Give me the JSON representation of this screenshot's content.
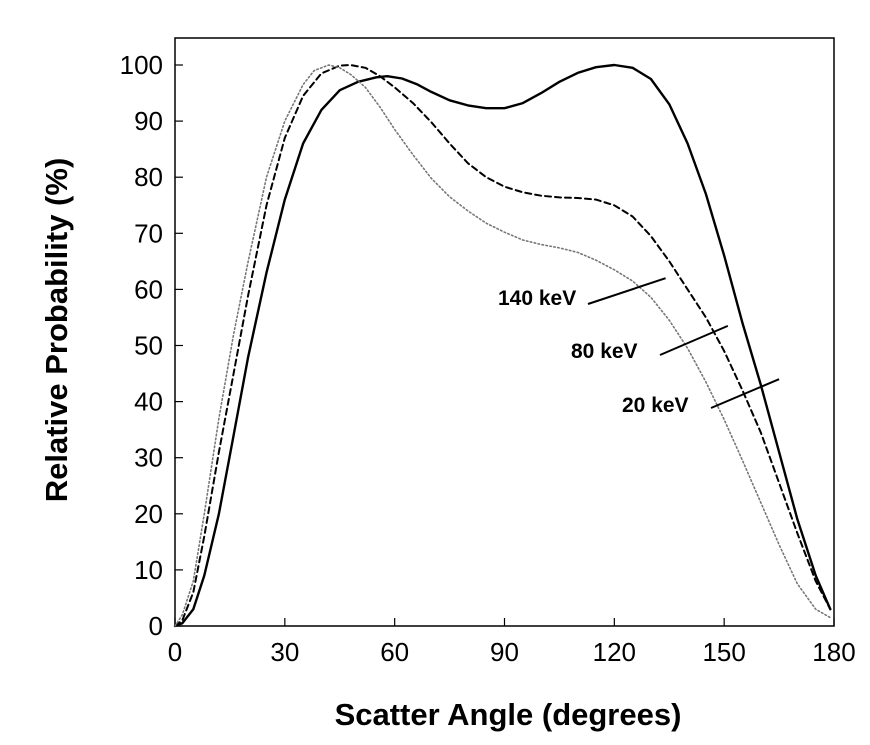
{
  "chart_data": {
    "type": "line",
    "title": "",
    "xlabel": "Scatter Angle (degrees)",
    "ylabel": "Relative Probability (%)",
    "xlim": [
      0,
      180
    ],
    "ylim": [
      0,
      105
    ],
    "xticks": [
      0,
      30,
      60,
      90,
      120,
      150,
      180
    ],
    "yticks": [
      0,
      10,
      20,
      30,
      40,
      50,
      60,
      70,
      80,
      90,
      100
    ],
    "grid": false,
    "legend": "none",
    "series": [
      {
        "name": "20 keV",
        "style": "solid",
        "color": "#000000",
        "x": [
          0,
          2,
          5,
          8,
          12,
          16,
          20,
          25,
          30,
          35,
          40,
          45,
          50,
          55,
          58,
          62,
          66,
          70,
          75,
          80,
          85,
          90,
          95,
          100,
          105,
          110,
          115,
          120,
          125,
          130,
          135,
          140,
          145,
          150,
          155,
          160,
          165,
          170,
          175,
          179
        ],
        "y": [
          0,
          0.5,
          3,
          9,
          20,
          34,
          48,
          63,
          76,
          86,
          92,
          95.5,
          97,
          97.8,
          98,
          97.6,
          96.6,
          95.2,
          93.7,
          92.8,
          92.3,
          92.3,
          93.2,
          95,
          97,
          98.6,
          99.6,
          100,
          99.5,
          97.5,
          93,
          86,
          77,
          66,
          54,
          43,
          31,
          19,
          9,
          3
        ]
      },
      {
        "name": "80 keV",
        "style": "dashed",
        "color": "#000000",
        "x": [
          0,
          2,
          5,
          8,
          12,
          16,
          20,
          25,
          30,
          35,
          40,
          45,
          48,
          52,
          56,
          60,
          65,
          70,
          75,
          80,
          85,
          90,
          95,
          100,
          105,
          110,
          115,
          120,
          125,
          130,
          135,
          140,
          145,
          150,
          155,
          160,
          165,
          170,
          175,
          179
        ],
        "y": [
          0,
          1,
          6,
          16,
          31,
          45,
          59,
          75,
          87,
          94.5,
          98.5,
          99.9,
          100,
          99.5,
          98,
          96,
          93.2,
          89.8,
          86,
          82.5,
          80,
          78.3,
          77.3,
          76.7,
          76.4,
          76.3,
          76,
          75,
          73,
          69.5,
          65,
          60,
          55,
          49,
          42,
          34.5,
          25.5,
          16.5,
          8,
          3
        ]
      },
      {
        "name": "140 keV",
        "style": "dotted",
        "color": "#777777",
        "x": [
          0,
          2,
          5,
          8,
          12,
          16,
          20,
          25,
          30,
          35,
          38,
          42,
          45,
          48,
          52,
          56,
          60,
          65,
          70,
          75,
          80,
          85,
          90,
          95,
          100,
          105,
          110,
          115,
          120,
          125,
          130,
          135,
          140,
          145,
          150,
          155,
          160,
          165,
          170,
          175,
          179
        ],
        "y": [
          0,
          2,
          8,
          20,
          37,
          52,
          65,
          80,
          90,
          96.5,
          99,
          100,
          99.5,
          98.3,
          96,
          92.5,
          88.5,
          84,
          79.8,
          76.5,
          74,
          71.8,
          70.2,
          68.8,
          68,
          67.4,
          66.6,
          65.2,
          63.5,
          61.5,
          58.6,
          54.5,
          49.5,
          43.5,
          36.8,
          29.5,
          22,
          14.5,
          7.5,
          3,
          1.5
        ]
      }
    ],
    "annotations": [
      {
        "text": "140 keV",
        "target_series": "140 keV",
        "x": 134,
        "y": 62
      },
      {
        "text": "80 keV",
        "target_series": "80 keV",
        "x": 151,
        "y": 53.5
      },
      {
        "text": "20 keV",
        "target_series": "20 keV",
        "x": 165,
        "y": 44
      }
    ]
  }
}
